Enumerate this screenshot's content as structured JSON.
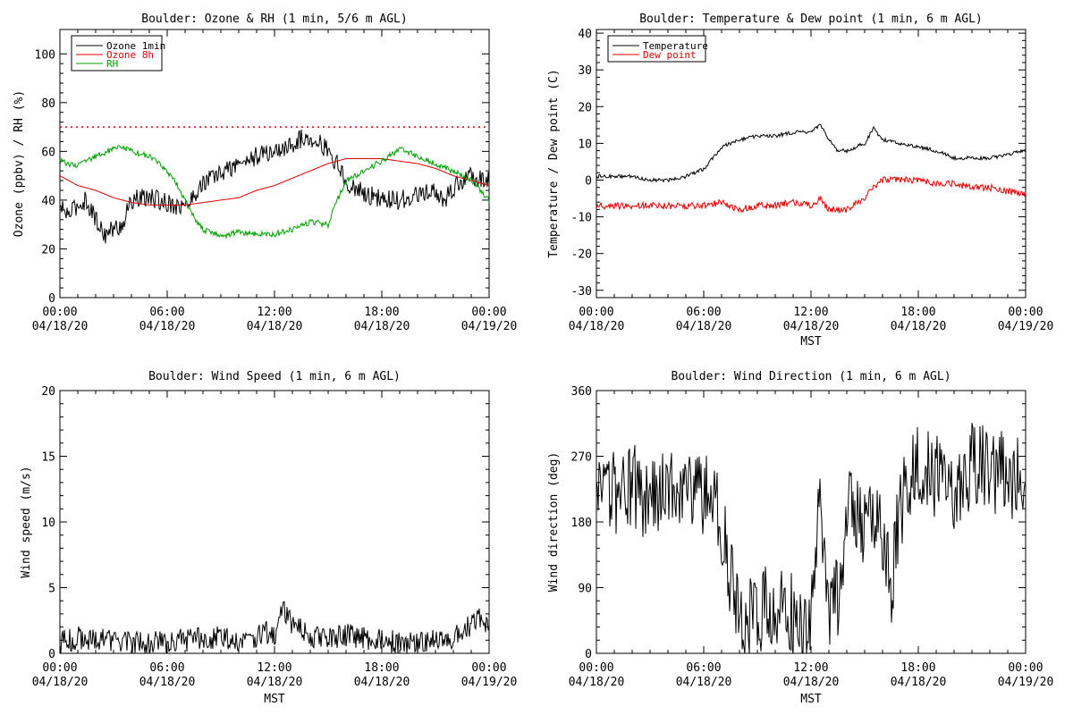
{
  "colors": {
    "black": "#000000",
    "red": "#e00000",
    "green": "#00a000"
  },
  "chart_data": [
    {
      "id": "ozone",
      "type": "line",
      "title": "Boulder: Ozone & RH (1 min, 5/6 m AGL)",
      "ylabel": "Ozone (ppbv) / RH (%)",
      "xlabel": "",
      "ylim": [
        0,
        110
      ],
      "yticks": [
        0,
        20,
        40,
        60,
        80,
        100
      ],
      "xlim": [
        0,
        24
      ],
      "xticks": [
        0,
        6,
        12,
        18,
        24
      ],
      "xtick_labels": [
        [
          "00:00",
          "04/18/20"
        ],
        [
          "06:00",
          "04/18/20"
        ],
        [
          "12:00",
          "04/18/20"
        ],
        [
          "18:00",
          "04/18/20"
        ],
        [
          "00:00",
          "04/19/20"
        ]
      ],
      "legend_position": "top-left",
      "reference_line": {
        "y": 70,
        "color": "red",
        "style": "dotted"
      },
      "series": [
        {
          "name": "Ozone 1min",
          "color": "black",
          "noise": 4,
          "x": [
            0,
            0.5,
            1,
            1.5,
            2,
            2.5,
            3,
            3.5,
            4,
            5,
            6,
            7,
            7.5,
            8,
            9,
            10,
            11,
            12,
            12.5,
            13,
            13.5,
            14,
            14.5,
            15,
            15.5,
            16,
            17,
            18,
            19,
            20,
            21,
            21.5,
            22,
            23,
            24
          ],
          "y": [
            37,
            34,
            38,
            40,
            32,
            26,
            28,
            30,
            40,
            41,
            39,
            37,
            42,
            47,
            51,
            55,
            58,
            60,
            61,
            63,
            65,
            66,
            64,
            60,
            55,
            47,
            43,
            40,
            40,
            42,
            43,
            40,
            45,
            50,
            48
          ]
        },
        {
          "name": "Ozone 8h",
          "color": "red",
          "noise": 0,
          "x": [
            0,
            1,
            2,
            3,
            4,
            5,
            6,
            7,
            8,
            9,
            10,
            11,
            12,
            13,
            14,
            15,
            16,
            17,
            18,
            19,
            20,
            21,
            22,
            23,
            24
          ],
          "y": [
            50,
            46,
            44,
            41,
            39,
            38,
            38,
            38,
            39,
            40,
            41,
            44,
            46,
            49,
            52,
            55,
            57,
            57,
            57,
            56,
            55,
            53,
            50,
            48,
            46
          ]
        },
        {
          "name": "RH",
          "color": "green",
          "noise": 1.2,
          "x": [
            0,
            1,
            2,
            3,
            3.5,
            4,
            5,
            6,
            6.5,
            7,
            7.5,
            8,
            9,
            10,
            11,
            12,
            13,
            14,
            15,
            15.5,
            16,
            17,
            18,
            19,
            20,
            21,
            22,
            23,
            24
          ],
          "y": [
            56,
            54,
            58,
            61,
            62,
            60,
            58,
            52,
            47,
            40,
            33,
            28,
            25,
            27,
            26,
            26,
            28,
            31,
            30,
            40,
            48,
            52,
            56,
            61,
            58,
            55,
            52,
            48,
            40
          ]
        }
      ]
    },
    {
      "id": "temp",
      "type": "line",
      "title": "Boulder: Temperature & Dew point (1 min, 6 m AGL)",
      "ylabel": "Temperature / Dew point (C)",
      "xlabel": "MST",
      "ylim": [
        -32,
        41
      ],
      "yticks": [
        -30,
        -20,
        -10,
        0,
        10,
        20,
        30,
        40
      ],
      "xlim": [
        0,
        24
      ],
      "xticks": [
        0,
        6,
        12,
        18,
        24
      ],
      "xtick_labels": [
        [
          "00:00",
          "04/18/20"
        ],
        [
          "06:00",
          "04/18/20"
        ],
        [
          "12:00",
          "04/18/20"
        ],
        [
          "18:00",
          "04/18/20"
        ],
        [
          "00:00",
          "04/19/20"
        ]
      ],
      "legend_position": "top-left",
      "series": [
        {
          "name": "Temperature",
          "color": "black",
          "noise": 0.5,
          "x": [
            0,
            1,
            2,
            3,
            4,
            5,
            6,
            6.5,
            7,
            8,
            9,
            10,
            11,
            12,
            12.5,
            13,
            13.5,
            14,
            15,
            15.5,
            16,
            17,
            18,
            19,
            20,
            21,
            22,
            23,
            24
          ],
          "y": [
            1,
            1,
            1,
            0,
            0,
            1,
            3,
            6,
            9,
            11,
            12,
            12,
            13,
            13,
            15,
            11,
            8,
            8,
            10,
            14,
            11,
            10,
            9,
            8,
            6,
            6,
            6,
            7,
            8
          ]
        },
        {
          "name": "Dew point",
          "color": "red",
          "noise": 0.9,
          "x": [
            0,
            1,
            2,
            3,
            4,
            5,
            6,
            7,
            8,
            9,
            10,
            11,
            12,
            12.5,
            13,
            14,
            15,
            15.5,
            16,
            17,
            18,
            19,
            20,
            21,
            22,
            23,
            24
          ],
          "y": [
            -7,
            -7,
            -7,
            -7,
            -7,
            -7,
            -7,
            -6,
            -8,
            -7,
            -7,
            -6,
            -7,
            -5,
            -8,
            -8,
            -5,
            -2,
            0,
            0,
            0,
            -1,
            -1,
            -2,
            -2,
            -3,
            -4
          ]
        }
      ]
    },
    {
      "id": "wind-speed",
      "type": "line",
      "title": "Boulder: Wind Speed (1 min, 6 m AGL)",
      "ylabel": "Wind speed (m/s)",
      "xlabel": "MST",
      "ylim": [
        0,
        20
      ],
      "yticks": [
        0,
        5,
        10,
        15,
        20
      ],
      "xlim": [
        0,
        24
      ],
      "xticks": [
        0,
        6,
        12,
        18,
        24
      ],
      "xtick_labels": [
        [
          "00:00",
          "04/18/20"
        ],
        [
          "06:00",
          "04/18/20"
        ],
        [
          "12:00",
          "04/18/20"
        ],
        [
          "18:00",
          "04/18/20"
        ],
        [
          "00:00",
          "04/19/20"
        ]
      ],
      "series": [
        {
          "name": "",
          "color": "black",
          "noise": 0.9,
          "clip_min": 0,
          "x": [
            0,
            1,
            2,
            3,
            4,
            5,
            6,
            7,
            8,
            9,
            10,
            11,
            11.5,
            12,
            12.5,
            13,
            14,
            15,
            16,
            17,
            18,
            19,
            20,
            21,
            22,
            23,
            23.5,
            24
          ],
          "y": [
            0.8,
            1.2,
            1.0,
            1.0,
            0.8,
            0.8,
            0.8,
            1.0,
            1.2,
            1.2,
            1.0,
            1.2,
            1.6,
            1.2,
            3.5,
            2.2,
            1.4,
            1.0,
            1.4,
            1.2,
            1.0,
            0.8,
            0.8,
            1.0,
            1.2,
            2.2,
            2.8,
            1.5
          ]
        }
      ]
    },
    {
      "id": "wind-dir",
      "type": "line",
      "title": "Boulder: Wind Direction (1 min, 6 m AGL)",
      "ylabel": "Wind direction (deg)",
      "xlabel": "MST",
      "ylim": [
        0,
        360
      ],
      "yticks": [
        0,
        90,
        180,
        270,
        360
      ],
      "xlim": [
        0,
        24
      ],
      "xticks": [
        0,
        6,
        12,
        18,
        24
      ],
      "xtick_labels": [
        [
          "00:00",
          "04/18/20"
        ],
        [
          "06:00",
          "04/18/20"
        ],
        [
          "12:00",
          "04/18/20"
        ],
        [
          "18:00",
          "04/18/20"
        ],
        [
          "00:00",
          "04/19/20"
        ]
      ],
      "series": [
        {
          "name": "",
          "color": "black",
          "noise": 60,
          "clip_min": 0,
          "clip_max": 360,
          "x": [
            0,
            1,
            2,
            3,
            4,
            5,
            6,
            6.5,
            7,
            7.5,
            8,
            8.5,
            9,
            10,
            11,
            12,
            12.5,
            13,
            13.5,
            14,
            15,
            15.5,
            16,
            16.5,
            17,
            18,
            19,
            20,
            21,
            22,
            23,
            24
          ],
          "y": [
            200,
            220,
            230,
            210,
            240,
            230,
            220,
            210,
            180,
            100,
            30,
            40,
            60,
            60,
            50,
            50,
            200,
            40,
            80,
            200,
            180,
            210,
            140,
            100,
            200,
            270,
            240,
            230,
            260,
            250,
            245,
            240
          ]
        }
      ]
    }
  ]
}
